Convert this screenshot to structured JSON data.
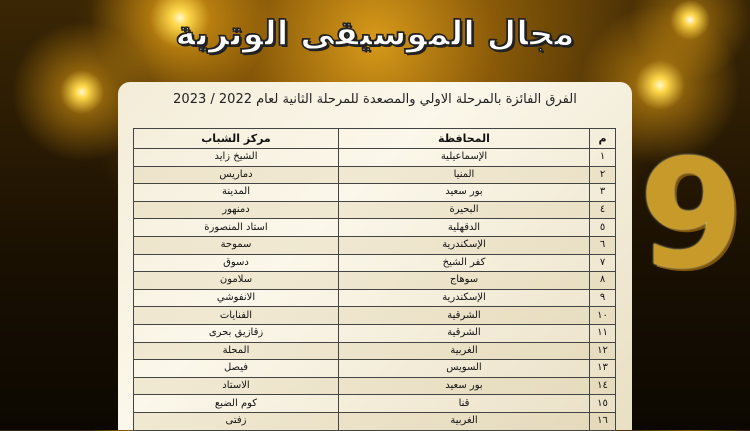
{
  "header": {
    "title": "مجال الموسيقى الوترية",
    "big_number": "9"
  },
  "panel": {
    "subtitle": "الفرق الفائزة بالمرحلة الاولي والمصعدة للمرحلة الثانية لعام 2022 / 2023",
    "columns": [
      "م",
      "المحافظة",
      "مركز الشباب"
    ],
    "rows": [
      [
        "١",
        "الإسماعيلية",
        "الشيخ زايد"
      ],
      [
        "٢",
        "المنيا",
        "دماريس"
      ],
      [
        "٣",
        "بور سعيد",
        "المدينة"
      ],
      [
        "٤",
        "البحيرة",
        "دمنهور"
      ],
      [
        "٥",
        "الدقهلية",
        "استاد المنصورة"
      ],
      [
        "٦",
        "الإسكندرية",
        "سموحة"
      ],
      [
        "٧",
        "كفر الشيخ",
        "دسوق"
      ],
      [
        "٨",
        "سوهاج",
        "سلامون"
      ],
      [
        "٩",
        "الإسكندرية",
        "الانفوشي"
      ],
      [
        "١٠",
        "الشرقية",
        "الفنايات"
      ],
      [
        "١١",
        "الشرقية",
        "زقازيق بحرى"
      ],
      [
        "١٢",
        "الغربية",
        "المحلة"
      ],
      [
        "١٣",
        "السويس",
        "فيصل"
      ],
      [
        "١٤",
        "بور سعيد",
        "الاستاد"
      ],
      [
        "١٥",
        "قنا",
        "كوم الضبع"
      ],
      [
        "١٦",
        "الغربية",
        "زفتى"
      ]
    ]
  }
}
